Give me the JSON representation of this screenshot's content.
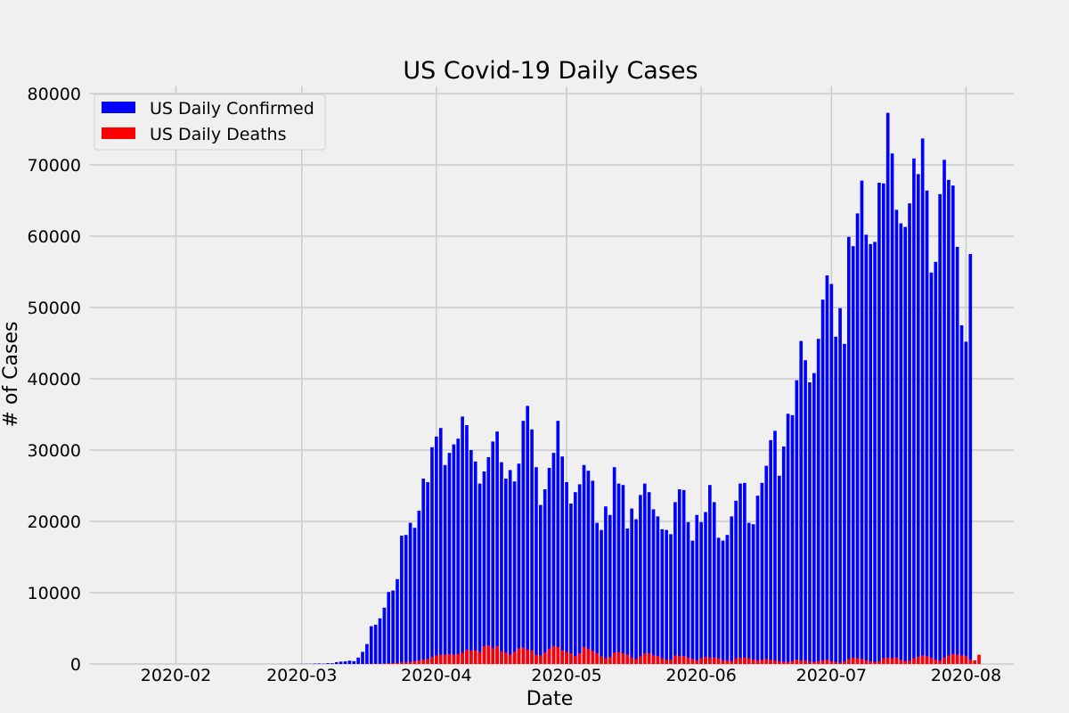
{
  "chart_data": {
    "type": "bar",
    "title": "US Covid-19 Daily Cases",
    "xlabel": "Date",
    "ylabel": "# of Cases",
    "ylim": [
      0,
      80000
    ],
    "yticks": [
      0,
      10000,
      20000,
      30000,
      40000,
      50000,
      60000,
      70000,
      80000
    ],
    "xlim": [
      "2020-01-12",
      "2020-08-12"
    ],
    "xticks": [
      {
        "date": "2020-02-01",
        "label": "2020-02"
      },
      {
        "date": "2020-03-01",
        "label": "2020-03"
      },
      {
        "date": "2020-04-01",
        "label": "2020-04"
      },
      {
        "date": "2020-05-01",
        "label": "2020-05"
      },
      {
        "date": "2020-06-01",
        "label": "2020-06"
      },
      {
        "date": "2020-07-01",
        "label": "2020-07"
      },
      {
        "date": "2020-08-01",
        "label": "2020-08"
      }
    ],
    "grid": true,
    "legend_position": "top-left",
    "colors": {
      "confirmed": "#0000ff",
      "deaths": "#ff0000"
    },
    "start_date": "2020-01-22",
    "series": [
      {
        "name": "US Daily Confirmed",
        "color": "#0000ff",
        "values": [
          0,
          0,
          1,
          0,
          3,
          0,
          0,
          0,
          1,
          1,
          1,
          3,
          0,
          0,
          0,
          0,
          0,
          0,
          0,
          0,
          0,
          0,
          0,
          0,
          0,
          0,
          2,
          0,
          1,
          0,
          0,
          0,
          0,
          0,
          5,
          4,
          5,
          8,
          14,
          20,
          22,
          20,
          53,
          70,
          44,
          113,
          100,
          250,
          330,
          370,
          470,
          400,
          900,
          1700,
          2800,
          5300,
          5500,
          6400,
          7900,
          10100,
          10300,
          11900,
          18000,
          18100,
          19800,
          19100,
          21500,
          26000,
          25500,
          30400,
          31900,
          33100,
          27900,
          29600,
          30800,
          31600,
          34700,
          33500,
          30000,
          28400,
          25300,
          27000,
          29000,
          31200,
          32600,
          28300,
          26000,
          27200,
          25600,
          28100,
          34100,
          36200,
          32900,
          27600,
          22300,
          24500,
          27500,
          29600,
          34100,
          29100,
          25500,
          22500,
          24100,
          25200,
          27900,
          27100,
          25700,
          19800,
          18800,
          22100,
          20900,
          27600,
          25300,
          25100,
          19000,
          21800,
          20300,
          23700,
          25300,
          24100,
          21700,
          20700,
          18900,
          18800,
          18200,
          22700,
          24500,
          24400,
          19900,
          17300,
          20900,
          19900,
          21300,
          25100,
          22700,
          17700,
          17300,
          18100,
          20700,
          22900,
          25300,
          25400,
          19800,
          19600,
          23600,
          25400,
          27800,
          31400,
          32700,
          26400,
          30500,
          35100,
          34900,
          39800,
          45300,
          42600,
          39500,
          40800,
          45600,
          51100,
          54500,
          53300,
          45900,
          49900,
          44900,
          59900,
          58600,
          63200,
          67800,
          60200,
          58900,
          59200,
          67500,
          67400,
          77300,
          71600,
          63700,
          61800,
          61300,
          64600,
          70900,
          68700,
          73700,
          66400,
          54900,
          56400,
          65900,
          70700,
          67900,
          67100,
          58500,
          47500,
          45200,
          57500
        ]
      },
      {
        "name": "US Daily Deaths",
        "color": "#ff0000",
        "values": [
          0,
          0,
          0,
          0,
          0,
          0,
          0,
          0,
          0,
          0,
          0,
          0,
          0,
          0,
          0,
          0,
          0,
          0,
          0,
          0,
          0,
          0,
          0,
          0,
          0,
          0,
          0,
          0,
          0,
          0,
          0,
          0,
          0,
          0,
          0,
          0,
          0,
          0,
          1,
          1,
          1,
          1,
          2,
          2,
          2,
          3,
          4,
          5,
          6,
          7,
          9,
          10,
          12,
          17,
          24,
          40,
          50,
          60,
          80,
          100,
          130,
          170,
          230,
          250,
          300,
          400,
          500,
          600,
          700,
          1000,
          1200,
          1300,
          1300,
          1400,
          1300,
          1400,
          1600,
          2000,
          1900,
          1900,
          1700,
          2500,
          2600,
          2200,
          2500,
          1800,
          1600,
          1300,
          1700,
          2200,
          2300,
          2000,
          1900,
          1300,
          1200,
          1600,
          2100,
          2500,
          2400,
          1900,
          1700,
          1500,
          1100,
          1500,
          2400,
          2100,
          1800,
          1500,
          1100,
          800,
          1000,
          1600,
          1700,
          1500,
          1300,
          900,
          700,
          1100,
          1500,
          1500,
          1200,
          1100,
          800,
          600,
          600,
          1200,
          1100,
          1100,
          900,
          700,
          500,
          800,
          1000,
          900,
          900,
          800,
          500,
          500,
          400,
          800,
          900,
          900,
          800,
          600,
          500,
          600,
          700,
          600,
          500,
          400,
          300,
          300,
          400,
          600,
          500,
          500,
          300,
          300,
          400,
          500,
          600,
          400,
          300,
          200,
          400,
          700,
          900,
          800,
          700,
          500,
          400,
          300,
          400,
          800,
          900,
          800,
          900,
          600,
          400,
          500,
          800,
          1000,
          1200,
          1100,
          900,
          600,
          500,
          900,
          1200,
          1400,
          1300,
          1200,
          1100,
          600,
          500,
          1300
        ]
      }
    ]
  }
}
